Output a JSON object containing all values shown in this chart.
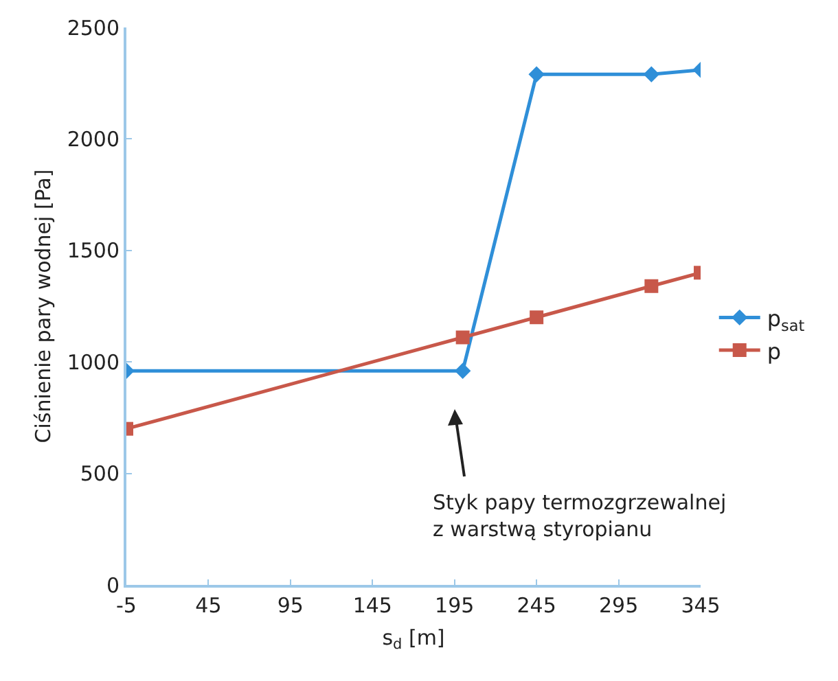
{
  "chart_data": {
    "type": "line",
    "xlabel": "s$_{d}$ [m]",
    "ylabel": "Ciśnienie pary wodnej [Pa]",
    "xlim": [
      -5,
      345
    ],
    "xticks": [
      -5,
      45,
      95,
      145,
      195,
      245,
      295,
      345
    ],
    "ylim": [
      0,
      2500
    ],
    "yticks": [
      0,
      500,
      1000,
      1500,
      2000,
      2500
    ],
    "grid": false,
    "legend": "right",
    "line_style": "solid",
    "series": [
      {
        "name": "p$_{sat}$",
        "color": "#2f8fd8",
        "marker": "diamond",
        "x": [
          -5,
          200,
          245,
          315,
          345
        ],
        "values": [
          960,
          960,
          2290,
          2290,
          2310
        ]
      },
      {
        "name": "p",
        "color": "#c8584a",
        "marker": "square",
        "x": [
          -5,
          200,
          245,
          315,
          345
        ],
        "values": [
          700,
          1110,
          1200,
          1340,
          1400
        ]
      }
    ],
    "annotations": [
      "Styk papy termozgrzewalnej\nz warstwą styropianu"
    ]
  }
}
